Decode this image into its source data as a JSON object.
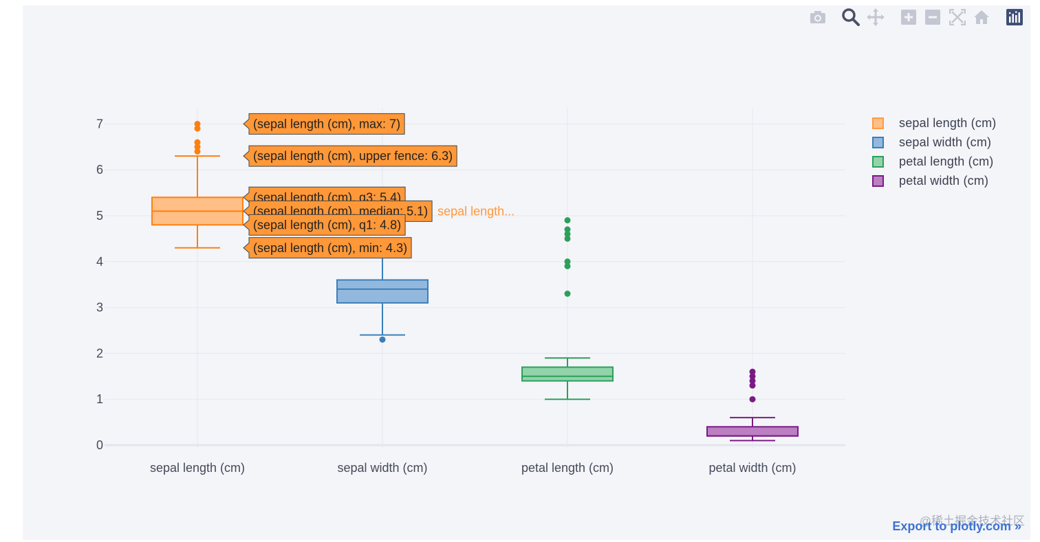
{
  "modebar": {
    "icons": [
      "camera-icon",
      "zoom-icon",
      "pan-icon",
      "zoom-in-icon",
      "zoom-out-icon",
      "autoscale-icon",
      "home-icon",
      "plotly-logo-icon"
    ]
  },
  "chart_data": {
    "type": "box",
    "title": "",
    "xlabel": "",
    "ylabel": "",
    "ylim": [
      0,
      7.4
    ],
    "yticks": [
      0,
      1,
      2,
      3,
      4,
      5,
      6,
      7
    ],
    "grid": true,
    "legend_position": "top-right",
    "categories": [
      "sepal length (cm)",
      "sepal width (cm)",
      "petal length (cm)",
      "petal width (cm)"
    ],
    "series": [
      {
        "name": "sepal length (cm)",
        "color": "#ff7f0e",
        "fill": "#ffbf86",
        "min": 4.3,
        "q1": 4.8,
        "median": 5.1,
        "q3": 5.4,
        "upper_fence": 6.3,
        "outliers": [
          6.4,
          6.5,
          6.6,
          6.9,
          7.0
        ]
      },
      {
        "name": "sepal width (cm)",
        "color": "#3a7fba",
        "fill": "#93b8de",
        "min": 2.4,
        "q1": 3.1,
        "median": 3.4,
        "q3": 3.6,
        "upper_fence": 4.1,
        "outliers": [
          2.3
        ]
      },
      {
        "name": "petal length (cm)",
        "color": "#2ca05a",
        "fill": "#92d3aa",
        "min": 1.0,
        "q1": 1.4,
        "median": 1.5,
        "q3": 1.7,
        "upper_fence": 1.9,
        "outliers": [
          3.3,
          3.9,
          4.0,
          4.5,
          4.6,
          4.7,
          4.9
        ]
      },
      {
        "name": "petal width (cm)",
        "color": "#7b1a85",
        "fill": "#bb7fc2",
        "min": 0.1,
        "q1": 0.2,
        "median": 0.2,
        "q3": 0.4,
        "upper_fence": 0.6,
        "outliers": [
          1.0,
          1.3,
          1.4,
          1.5,
          1.6
        ]
      }
    ],
    "hover": {
      "color": "#ff9838",
      "labels": [
        {
          "text": "(sepal length (cm), max: 7)",
          "y": 7.0
        },
        {
          "text": "(sepal length (cm), upper fence: 6.3)",
          "y": 6.3
        },
        {
          "text": "(sepal length (cm), q3: 5.4)",
          "y": 5.4
        },
        {
          "text": "(sepal length (cm), median: 5.1)",
          "y": 5.1
        },
        {
          "text": "(sepal length (cm), q1: 4.8)",
          "y": 4.8
        },
        {
          "text": "(sepal length (cm), min: 4.3)",
          "y": 4.3
        }
      ],
      "trace_label": "sepal length..."
    }
  },
  "footer": {
    "export_label": "Export to plotly.com »",
    "watermark": "@稀土掘金技术社区"
  }
}
